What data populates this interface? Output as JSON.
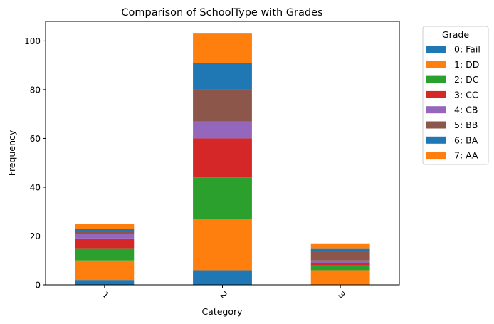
{
  "chart_data": {
    "type": "bar",
    "stacked": true,
    "title": "Comparison of SchoolType with Grades",
    "xlabel": "Category",
    "ylabel": "Frequency",
    "categories": [
      "1",
      "2",
      "3"
    ],
    "ylim": [
      0,
      108
    ],
    "yticks": [
      0,
      20,
      40,
      60,
      80,
      100
    ],
    "grid": false,
    "legend": {
      "title": "Grade",
      "position": "outside-right"
    },
    "series": [
      {
        "name": "0: Fail",
        "color": "#1f77b4",
        "values": [
          2,
          6,
          0
        ]
      },
      {
        "name": "1: DD",
        "color": "#ff7f0e",
        "values": [
          8,
          21,
          6
        ]
      },
      {
        "name": "2: DC",
        "color": "#2ca02c",
        "values": [
          5,
          17,
          2
        ]
      },
      {
        "name": "3: CC",
        "color": "#d62728",
        "values": [
          4,
          16,
          1
        ]
      },
      {
        "name": "4: CB",
        "color": "#9467bd",
        "values": [
          2,
          7,
          1
        ]
      },
      {
        "name": "5: BB",
        "color": "#8c564b",
        "values": [
          1,
          13,
          4
        ]
      },
      {
        "name": "6: BA",
        "color": "#1f77b4",
        "values": [
          1,
          11,
          1
        ]
      },
      {
        "name": "7: AA",
        "color": "#ff7f0e",
        "values": [
          2,
          12,
          2
        ]
      }
    ]
  }
}
